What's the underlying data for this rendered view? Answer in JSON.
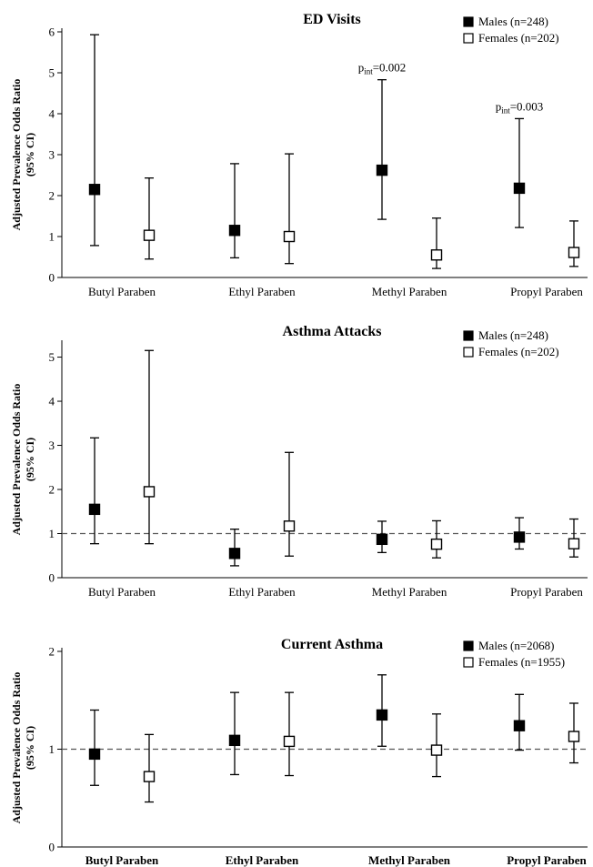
{
  "chart_data": [
    {
      "type": "scatter",
      "title": "ED Visits",
      "ylabel": "Adjusted Prevalence Odds Ratio (95% CI)",
      "ylim": [
        0,
        6
      ],
      "yticks": [
        "0",
        "1",
        "2",
        "3",
        "4",
        "5",
        "6"
      ],
      "reference_line": null,
      "categories": [
        "Butyl Paraben",
        "Ethyl Paraben",
        "Methyl Paraben",
        "Propyl Paraben"
      ],
      "series": [
        {
          "name": "Males (n=248)",
          "marker": "filled-square",
          "color": "#000000",
          "values": [
            2.15,
            1.15,
            2.62,
            2.18
          ],
          "ci_low": [
            0.78,
            0.48,
            1.42,
            1.22
          ],
          "ci_high": [
            5.93,
            2.78,
            4.83,
            3.88
          ]
        },
        {
          "name": "Females (n=202)",
          "marker": "open-square",
          "color": "#000000",
          "values": [
            1.03,
            1.0,
            0.55,
            0.61
          ],
          "ci_low": [
            0.45,
            0.34,
            0.22,
            0.27
          ],
          "ci_high": [
            2.43,
            3.02,
            1.45,
            1.38
          ]
        }
      ],
      "annotations": [
        {
          "category": "Methyl Paraben",
          "p": "p",
          "sub": "int",
          "text": "=0.002"
        },
        {
          "category": "Propyl Paraben",
          "p": "p",
          "sub": "int",
          "text": "=0.003"
        }
      ]
    },
    {
      "type": "scatter",
      "title": "Asthma Attacks",
      "ylabel": "Adjusted Prevalence Odds Ratio (95% CI)",
      "ylim": [
        0,
        5.3
      ],
      "yticks": [
        "0",
        "1",
        "2",
        "3",
        "4",
        "5"
      ],
      "reference_line": 1,
      "categories": [
        "Butyl Paraben",
        "Ethyl Paraben",
        "Methyl Paraben",
        "Propyl Paraben"
      ],
      "series": [
        {
          "name": "Males (n=248)",
          "marker": "filled-square",
          "color": "#000000",
          "values": [
            1.55,
            0.55,
            0.87,
            0.92
          ],
          "ci_low": [
            0.77,
            0.27,
            0.57,
            0.65
          ],
          "ci_high": [
            3.17,
            1.1,
            1.28,
            1.36
          ]
        },
        {
          "name": "Females (n=202)",
          "marker": "open-square",
          "color": "#000000",
          "values": [
            1.95,
            1.17,
            0.76,
            0.77
          ],
          "ci_low": [
            0.77,
            0.49,
            0.45,
            0.47
          ],
          "ci_high": [
            5.15,
            2.84,
            1.29,
            1.33
          ]
        }
      ],
      "annotations": []
    },
    {
      "type": "scatter",
      "title": "Current Asthma",
      "ylabel": "Adjusted Prevalence Odds Ratio (95% CI)",
      "ylim": [
        0,
        2
      ],
      "yticks": [
        "0",
        "1",
        "2"
      ],
      "reference_line": 1,
      "categories": [
        "Butyl Paraben",
        "Ethyl Paraben",
        "Methyl Paraben",
        "Propyl Paraben"
      ],
      "category_style": "bold",
      "series": [
        {
          "name": "Males (n=2068)",
          "marker": "filled-square",
          "color": "#000000",
          "values": [
            0.95,
            1.09,
            1.35,
            1.24
          ],
          "ci_low": [
            0.63,
            0.74,
            1.03,
            0.99
          ],
          "ci_high": [
            1.4,
            1.58,
            1.76,
            1.56
          ]
        },
        {
          "name": "Females (n=1955)",
          "marker": "open-square",
          "color": "#000000",
          "values": [
            0.72,
            1.08,
            0.99,
            1.13
          ],
          "ci_low": [
            0.46,
            0.73,
            0.72,
            0.86
          ],
          "ci_high": [
            1.15,
            1.58,
            1.36,
            1.47
          ]
        }
      ],
      "annotations": []
    }
  ]
}
